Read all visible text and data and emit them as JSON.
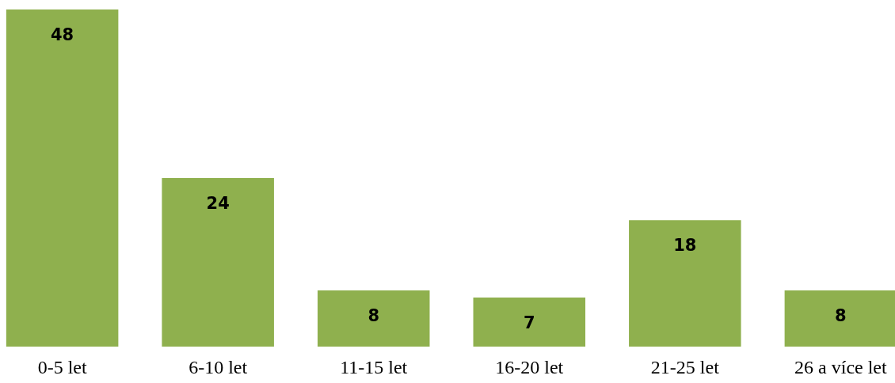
{
  "chart_data": {
    "type": "bar",
    "categories": [
      "0-5 let",
      "6-10 let",
      "11-15 let",
      "16-20 let",
      "21-25 let",
      "26 a více let"
    ],
    "values": [
      48,
      24,
      8,
      7,
      18,
      8
    ],
    "color": "#8fb04e",
    "data_labels": true
  }
}
